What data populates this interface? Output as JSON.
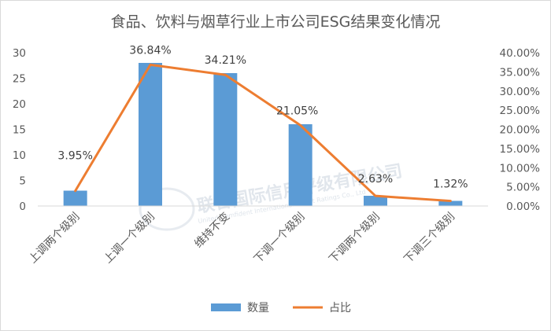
{
  "chart_data": {
    "type": "bar+line",
    "title": "食品、饮料与烟草行业上市公司ESG结果变化情况",
    "categories": [
      "上调两个级别",
      "上调一个级别",
      "维持不变",
      "下调一个级别",
      "下调两个级别",
      "下调三个级别"
    ],
    "series": [
      {
        "name": "数量",
        "type": "bar",
        "axis": "left",
        "values": [
          3,
          28,
          26,
          16,
          2,
          1
        ],
        "color": "#5b9bd5"
      },
      {
        "name": "占比",
        "type": "line",
        "axis": "right",
        "values": [
          3.95,
          36.84,
          34.21,
          21.05,
          2.63,
          1.32
        ],
        "labels": [
          "3.95%",
          "36.84%",
          "34.21%",
          "21.05%",
          "2.63%",
          "1.32%"
        ],
        "color": "#ed7d31"
      }
    ],
    "y_left": {
      "min": 0,
      "max": 30,
      "ticks": [
        "0",
        "5",
        "10",
        "15",
        "20",
        "25",
        "30"
      ]
    },
    "y_right": {
      "min": 0,
      "max": 40,
      "ticks": [
        "0.00%",
        "5.00%",
        "10.00%",
        "15.00%",
        "20.00%",
        "25.00%",
        "30.00%",
        "35.00%",
        "40.00%"
      ]
    },
    "grid": false,
    "legend": "bottom"
  },
  "watermark": {
    "cn": "联合国际信用评级有限公司",
    "en": "United Comfident International Credit Ratings Co., Ltd"
  }
}
